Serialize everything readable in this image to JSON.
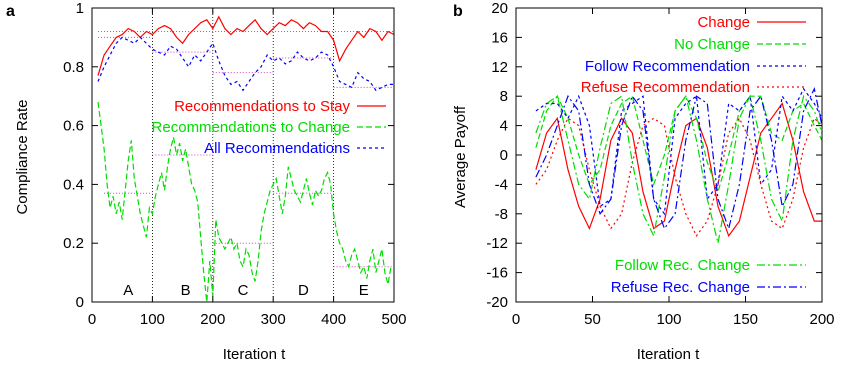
{
  "chart_data": [
    {
      "panel_label": "a",
      "type": "line",
      "xlabel": "Iteration t",
      "ylabel": "Compliance Rate",
      "xlim": [
        0,
        500
      ],
      "ylim": [
        0,
        1
      ],
      "xticks": [
        "0",
        "100",
        "200",
        "300",
        "400",
        "500"
      ],
      "yticks": [
        "0",
        "0.2",
        "0.4",
        "0.6",
        "0.8",
        "1"
      ],
      "x_tick_values": [
        0,
        100,
        200,
        300,
        400,
        500
      ],
      "y_tick_values": [
        0,
        0.2,
        0.4,
        0.6,
        0.8,
        1
      ],
      "legend_position": "center-left",
      "phase_dividers": [
        100,
        200,
        300,
        400
      ],
      "phase_labels": [
        {
          "text": "A",
          "x": 60
        },
        {
          "text": "B",
          "x": 155
        },
        {
          "text": "C",
          "x": 250
        },
        {
          "text": "D",
          "x": 350
        },
        {
          "text": "E",
          "x": 450
        }
      ],
      "reference_lines": [
        {
          "series": 0,
          "color": "#cc44cc",
          "segments": [
            [
              10,
              0.92,
              500,
              0.92
            ]
          ]
        },
        {
          "series": 1,
          "color": "#cc44cc",
          "segments": [
            [
              20,
              0.37,
              100,
              0.37
            ],
            [
              100,
              0.5,
              200,
              0.5
            ],
            [
              200,
              0.2,
              300,
              0.2
            ],
            [
              300,
              0.37,
              400,
              0.37
            ],
            [
              400,
              0.12,
              500,
              0.12
            ]
          ]
        },
        {
          "series": 2,
          "color": "#cc44cc",
          "segments": [
            [
              10,
              0.9,
              100,
              0.9
            ],
            [
              100,
              0.85,
              200,
              0.85
            ],
            [
              200,
              0.78,
              300,
              0.78
            ],
            [
              300,
              0.83,
              400,
              0.83
            ],
            [
              400,
              0.73,
              500,
              0.73
            ]
          ]
        }
      ],
      "series": [
        {
          "name": "Recommendations to Stay",
          "color": "#ff0000",
          "dash": "",
          "x": [
            10,
            20,
            30,
            40,
            50,
            60,
            70,
            80,
            90,
            100,
            110,
            120,
            130,
            140,
            150,
            160,
            170,
            180,
            190,
            200,
            210,
            220,
            230,
            240,
            250,
            260,
            270,
            280,
            290,
            300,
            310,
            320,
            330,
            340,
            350,
            360,
            370,
            380,
            390,
            400,
            410,
            420,
            430,
            440,
            450,
            460,
            470,
            480,
            490,
            500
          ],
          "y": [
            0.77,
            0.84,
            0.87,
            0.9,
            0.91,
            0.93,
            0.92,
            0.9,
            0.92,
            0.91,
            0.93,
            0.94,
            0.93,
            0.9,
            0.88,
            0.91,
            0.93,
            0.95,
            0.96,
            0.93,
            0.97,
            0.93,
            0.91,
            0.93,
            0.92,
            0.94,
            0.96,
            0.93,
            0.91,
            0.93,
            0.95,
            0.94,
            0.96,
            0.95,
            0.93,
            0.95,
            0.94,
            0.92,
            0.92,
            0.89,
            0.82,
            0.86,
            0.89,
            0.92,
            0.9,
            0.93,
            0.92,
            0.89,
            0.92,
            0.91
          ]
        },
        {
          "name": "Recommendations to Change",
          "color": "#00dd00",
          "dash": "6,3",
          "x": [
            10,
            15,
            20,
            25,
            30,
            35,
            40,
            45,
            50,
            55,
            60,
            65,
            70,
            75,
            80,
            85,
            90,
            95,
            100,
            105,
            110,
            115,
            120,
            125,
            130,
            135,
            140,
            145,
            150,
            155,
            160,
            165,
            170,
            175,
            180,
            185,
            190,
            195,
            200,
            205,
            210,
            215,
            220,
            225,
            230,
            235,
            240,
            245,
            250,
            255,
            260,
            265,
            270,
            275,
            280,
            285,
            290,
            295,
            300,
            305,
            310,
            315,
            320,
            325,
            330,
            335,
            340,
            345,
            350,
            355,
            360,
            365,
            370,
            375,
            380,
            385,
            390,
            395,
            400,
            405,
            410,
            415,
            420,
            425,
            430,
            435,
            440,
            445,
            450,
            455,
            460,
            465,
            470,
            475,
            480,
            485,
            490,
            495
          ],
          "y": [
            0.68,
            0.6,
            0.52,
            0.4,
            0.32,
            0.36,
            0.3,
            0.34,
            0.28,
            0.38,
            0.48,
            0.55,
            0.42,
            0.36,
            0.3,
            0.26,
            0.22,
            0.32,
            0.3,
            0.36,
            0.4,
            0.44,
            0.38,
            0.46,
            0.52,
            0.56,
            0.5,
            0.54,
            0.48,
            0.52,
            0.46,
            0.4,
            0.38,
            0.34,
            0.22,
            0.1,
            0.0,
            0.14,
            0.02,
            0.28,
            0.22,
            0.2,
            0.18,
            0.2,
            0.22,
            0.18,
            0.2,
            0.14,
            0.12,
            0.18,
            0.16,
            0.1,
            0.07,
            0.14,
            0.24,
            0.3,
            0.34,
            0.38,
            0.4,
            0.42,
            0.36,
            0.3,
            0.36,
            0.46,
            0.42,
            0.38,
            0.36,
            0.34,
            0.38,
            0.42,
            0.37,
            0.33,
            0.38,
            0.36,
            0.38,
            0.42,
            0.44,
            0.4,
            0.3,
            0.24,
            0.2,
            0.18,
            0.14,
            0.12,
            0.16,
            0.18,
            0.14,
            0.1,
            0.12,
            0.08,
            0.14,
            0.18,
            0.1,
            0.14,
            0.18,
            0.1,
            0.06,
            0.12
          ]
        },
        {
          "name": "All Recommendations",
          "color": "#0000ff",
          "dash": "3,3",
          "x": [
            10,
            20,
            30,
            40,
            50,
            60,
            70,
            80,
            90,
            100,
            110,
            120,
            130,
            140,
            150,
            160,
            170,
            180,
            190,
            200,
            210,
            220,
            230,
            240,
            250,
            260,
            270,
            280,
            290,
            300,
            310,
            320,
            330,
            340,
            350,
            360,
            370,
            380,
            390,
            400,
            410,
            420,
            430,
            440,
            450,
            460,
            470,
            480,
            490,
            500
          ],
          "y": [
            0.75,
            0.8,
            0.84,
            0.88,
            0.9,
            0.89,
            0.88,
            0.9,
            0.88,
            0.86,
            0.85,
            0.84,
            0.87,
            0.86,
            0.83,
            0.8,
            0.84,
            0.82,
            0.85,
            0.88,
            0.82,
            0.77,
            0.74,
            0.75,
            0.72,
            0.75,
            0.78,
            0.8,
            0.84,
            0.82,
            0.83,
            0.81,
            0.82,
            0.85,
            0.83,
            0.82,
            0.83,
            0.85,
            0.84,
            0.8,
            0.75,
            0.74,
            0.73,
            0.78,
            0.76,
            0.75,
            0.72,
            0.73,
            0.74,
            0.74
          ]
        }
      ]
    },
    {
      "panel_label": "b",
      "type": "line",
      "xlabel": "Iteration t",
      "ylabel": "Average Payoff",
      "xlim": [
        0,
        200
      ],
      "ylim": [
        -20,
        20
      ],
      "xticks": [
        "0",
        "50",
        "100",
        "150",
        "200"
      ],
      "yticks": [
        "-20",
        "-16",
        "-12",
        "-8",
        "-4",
        "0",
        "4",
        "8",
        "12",
        "16",
        "20"
      ],
      "x_tick_values": [
        0,
        50,
        100,
        150,
        200
      ],
      "y_tick_values": [
        -20,
        -16,
        -12,
        -8,
        -4,
        0,
        4,
        8,
        12,
        16,
        20
      ],
      "legend_position": "top-right and bottom-right",
      "series": [
        {
          "name": "Change",
          "color": "#ff0000",
          "dash": "",
          "legend": "top",
          "x": [
            13,
            20,
            27,
            34,
            41,
            48,
            55,
            62,
            69,
            76,
            83,
            90,
            97,
            104,
            111,
            118,
            125,
            132,
            139,
            146,
            153,
            160,
            167,
            174,
            181,
            188,
            195,
            200
          ],
          "y": [
            -2,
            3,
            5,
            -2,
            -7,
            -10,
            -6,
            2,
            5,
            3,
            -5,
            -10,
            -9,
            -2,
            4,
            5,
            1,
            -7,
            -11,
            -9,
            -3,
            3,
            5,
            7,
            2,
            -5,
            -9,
            -9
          ]
        },
        {
          "name": "No Change",
          "color": "#00dd00",
          "dash": "6,3",
          "legend": "top",
          "x": [
            13,
            20,
            27,
            34,
            41,
            48,
            55,
            62,
            69,
            76,
            83,
            90,
            97,
            104,
            111,
            118,
            125,
            132,
            139,
            146,
            153,
            160,
            167,
            174,
            181,
            188,
            195,
            200
          ],
          "y": [
            1,
            6,
            8,
            5,
            0,
            -4,
            -2,
            4,
            7,
            8,
            2,
            -4,
            0,
            6,
            8,
            5,
            -1,
            -5,
            0,
            6,
            8,
            8,
            3,
            2,
            6,
            7,
            4,
            2
          ]
        },
        {
          "name": "Follow Recommendation",
          "color": "#0000ff",
          "dash": "3,3",
          "legend": "top",
          "x": [
            13,
            20,
            27,
            34,
            41,
            48,
            55,
            62,
            69,
            76,
            83,
            90,
            97,
            104,
            111,
            118,
            125,
            132,
            139,
            146,
            153,
            160,
            167,
            174,
            181,
            188,
            195,
            200
          ],
          "y": [
            6,
            7,
            7,
            5,
            8,
            4,
            -7,
            -6,
            6,
            7,
            8,
            -6,
            -8,
            5,
            7,
            8,
            -6,
            -4,
            7,
            6,
            8,
            -4,
            -2,
            8,
            6,
            9,
            7,
            5
          ]
        },
        {
          "name": "Refuse Recommendation",
          "color": "#ff0000",
          "dash": "2,3",
          "legend": "top",
          "x": [
            13,
            20,
            27,
            34,
            41,
            48,
            55,
            62,
            69,
            76,
            83,
            90,
            97,
            104,
            111,
            118,
            125,
            132,
            139,
            146,
            153,
            160,
            167,
            174,
            181,
            188,
            195,
            200
          ],
          "y": [
            -4,
            -2,
            2,
            5,
            4,
            -2,
            -7,
            -10,
            -8,
            -1,
            4,
            5,
            4,
            -3,
            -8,
            -11,
            -9,
            -4,
            3,
            5,
            2,
            -4,
            -9,
            -10,
            -6,
            1,
            5,
            4
          ]
        },
        {
          "name": "Follow Rec. Change",
          "color": "#00dd00",
          "dash": "8,3,2,3",
          "legend": "bottom",
          "x": [
            13,
            20,
            27,
            34,
            41,
            48,
            55,
            62,
            69,
            76,
            83,
            90,
            97,
            104,
            111,
            118,
            125,
            132,
            139,
            146,
            153,
            160,
            167,
            174,
            181,
            188,
            195,
            200
          ],
          "y": [
            3,
            7,
            8,
            2,
            -4,
            -6,
            1,
            7,
            8,
            -1,
            -8,
            -11,
            -3,
            6,
            8,
            2,
            -6,
            -12,
            -4,
            5,
            8,
            2,
            -6,
            -9,
            2,
            8,
            6,
            3
          ]
        },
        {
          "name": "Refuse Rec. Change",
          "color": "#0000ff",
          "dash": "8,3,2,3",
          "legend": "bottom",
          "x": [
            13,
            20,
            27,
            34,
            41,
            48,
            55,
            62,
            69,
            76,
            83,
            90,
            97,
            104,
            111,
            118,
            125,
            132,
            139,
            146,
            153,
            160,
            167,
            174,
            181,
            188,
            195,
            200
          ],
          "y": [
            -3,
            0,
            4,
            8,
            6,
            -4,
            -8,
            -6,
            4,
            8,
            6,
            -6,
            -10,
            -8,
            2,
            8,
            7,
            -6,
            -10,
            -4,
            6,
            8,
            2,
            -7,
            -4,
            6,
            9,
            4
          ]
        }
      ]
    }
  ]
}
